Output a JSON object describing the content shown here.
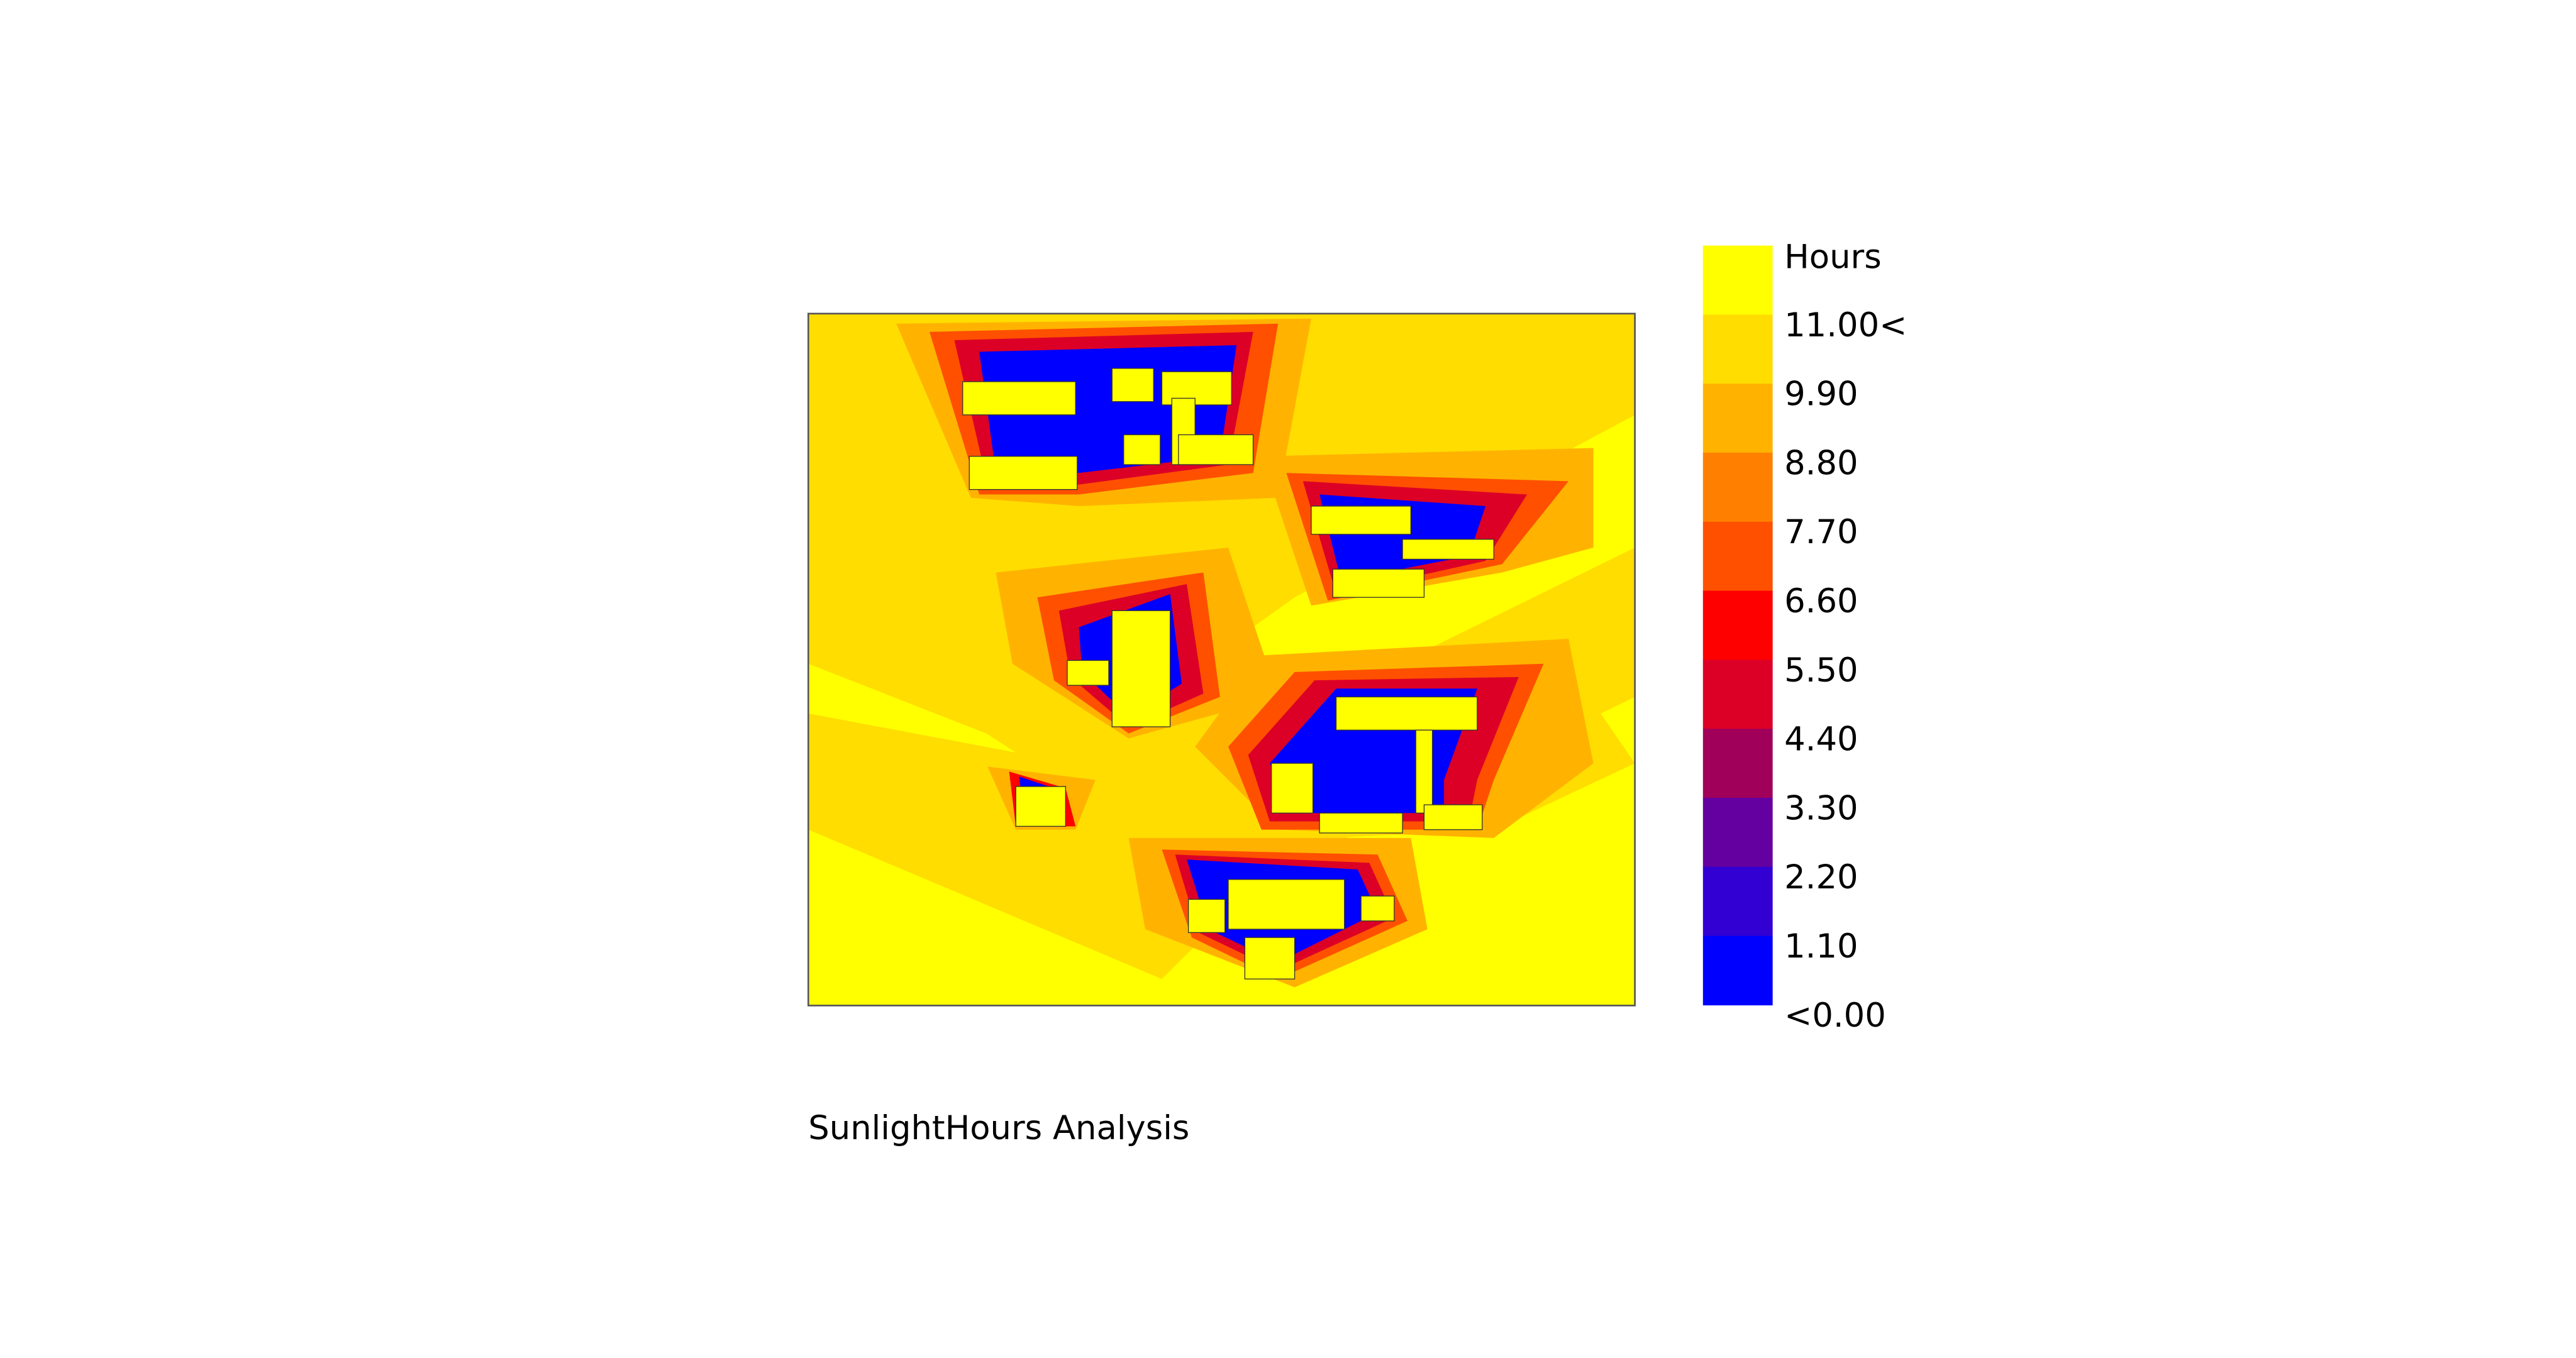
{
  "title": "SunlightHours Analysis",
  "legend": {
    "title": "Hours",
    "colors": [
      "#ffff00",
      "#ffdd00",
      "#ffb300",
      "#ff8000",
      "#ff5000",
      "#ff0000",
      "#dc0026",
      "#a0005a",
      "#6400a0",
      "#3200d2",
      "#0000ff"
    ],
    "labels": [
      "11.00<",
      "9.90",
      "8.80",
      "7.70",
      "6.60",
      "5.50",
      "4.40",
      "3.30",
      "2.20",
      "1.10",
      "<0.00"
    ]
  }
}
